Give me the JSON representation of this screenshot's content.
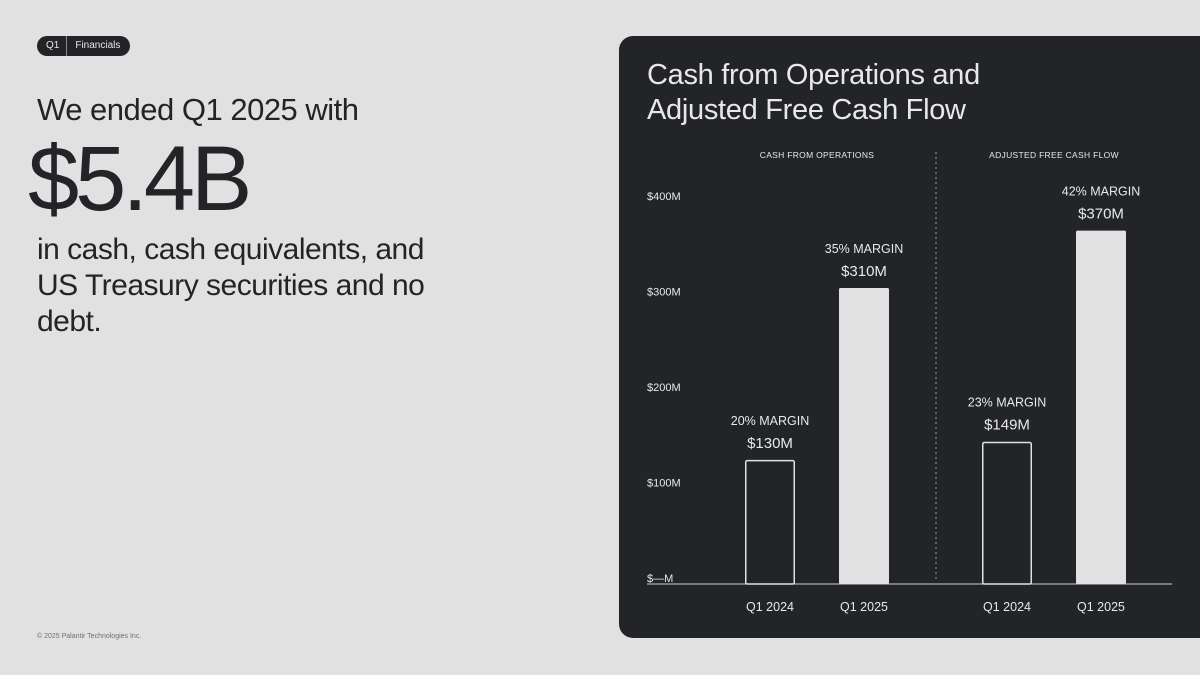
{
  "tag": {
    "first": "Q1",
    "second": "Financials"
  },
  "headline": "We ended Q1 2025 with",
  "big_number": "$5.4B",
  "subtext": "in cash, cash equivalents, and US Treasury securities and no debt.",
  "footer": "© 2025 Palantir Technologies Inc.",
  "colors": {
    "page_bg": "#e1e1e1",
    "panel_bg": "#222428",
    "bar_fill": "#e1e1e1",
    "text_light": "#e8e8e8"
  },
  "chart_data": {
    "type": "bar",
    "title": "Cash from Operations and Adjusted Free Cash Flow",
    "ylim": [
      0,
      400
    ],
    "yticks": [
      {
        "value": 0,
        "label": "$—M"
      },
      {
        "value": 100,
        "label": "$100M"
      },
      {
        "value": 200,
        "label": "$200M"
      },
      {
        "value": 300,
        "label": "$300M"
      },
      {
        "value": 400,
        "label": "$400M"
      }
    ],
    "grid": false,
    "groups": [
      {
        "name": "CASH FROM OPERATIONS",
        "bars": [
          {
            "category": "Q1 2024",
            "value": 130,
            "value_label": "$130M",
            "margin_label": "20% MARGIN",
            "style": "outline"
          },
          {
            "category": "Q1 2025",
            "value": 310,
            "value_label": "$310M",
            "margin_label": "35% MARGIN",
            "style": "filled"
          }
        ]
      },
      {
        "name": "ADJUSTED FREE CASH FLOW",
        "bars": [
          {
            "category": "Q1 2024",
            "value": 149,
            "value_label": "$149M",
            "margin_label": "23% MARGIN",
            "style": "outline"
          },
          {
            "category": "Q1 2025",
            "value": 370,
            "value_label": "$370M",
            "margin_label": "42% MARGIN",
            "style": "filled"
          }
        ]
      }
    ]
  }
}
